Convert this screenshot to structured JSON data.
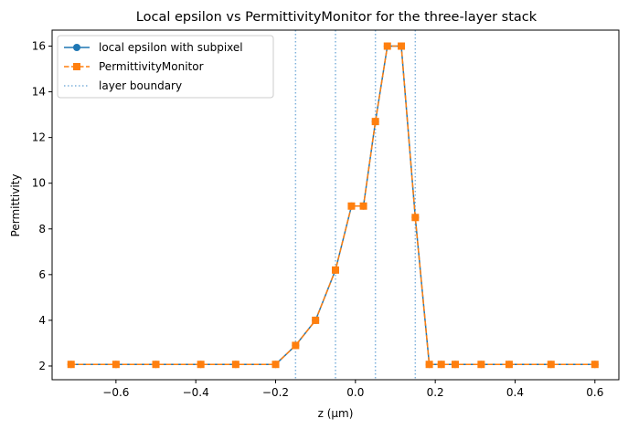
{
  "chart_data": {
    "type": "line",
    "title": "Local epsilon vs PermittivityMonitor for the three-layer stack",
    "xlabel": "z (µm)",
    "ylabel": "Permittivity",
    "xlim": [
      -0.76,
      0.66
    ],
    "ylim": [
      1.4,
      16.7
    ],
    "xticks": [
      -0.6,
      -0.4,
      -0.2,
      0.0,
      0.2,
      0.4,
      0.6
    ],
    "xtick_labels": [
      "−0.6",
      "−0.4",
      "−0.2",
      "0.0",
      "0.2",
      "0.4",
      "0.6"
    ],
    "yticks": [
      2,
      4,
      6,
      8,
      10,
      12,
      14,
      16
    ],
    "ytick_labels": [
      "2",
      "4",
      "6",
      "8",
      "10",
      "12",
      "14",
      "16"
    ],
    "grid": false,
    "legend_position": "top-left",
    "series": [
      {
        "name": "local epsilon with subpixel",
        "color": "#1f77b4",
        "style": "solid",
        "marker": "circle",
        "x": [
          -0.7125,
          -0.6,
          -0.5,
          -0.3875,
          -0.3,
          -0.2,
          -0.15,
          -0.1,
          -0.05,
          -0.01,
          0.02,
          0.05,
          0.08,
          0.115,
          0.15,
          0.185,
          0.215,
          0.25,
          0.315,
          0.385,
          0.49,
          0.6
        ],
        "y": [
          2.07,
          2.07,
          2.07,
          2.07,
          2.07,
          2.07,
          2.9,
          4.0,
          6.2,
          9.0,
          9.0,
          12.7,
          16.0,
          16.0,
          8.5,
          2.07,
          2.07,
          2.07,
          2.07,
          2.07,
          2.07,
          2.07
        ]
      },
      {
        "name": "PermittivityMonitor",
        "color": "#ff7f0e",
        "style": "dashed",
        "marker": "square",
        "x": [
          -0.7125,
          -0.6,
          -0.5,
          -0.3875,
          -0.3,
          -0.2,
          -0.15,
          -0.1,
          -0.05,
          -0.01,
          0.02,
          0.05,
          0.08,
          0.115,
          0.15,
          0.185,
          0.215,
          0.25,
          0.315,
          0.385,
          0.49,
          0.6
        ],
        "y": [
          2.07,
          2.07,
          2.07,
          2.07,
          2.07,
          2.07,
          2.9,
          4.0,
          6.2,
          9.0,
          9.0,
          12.7,
          16.0,
          16.0,
          8.5,
          2.07,
          2.07,
          2.07,
          2.07,
          2.07,
          2.07,
          2.07
        ]
      }
    ],
    "boundaries": {
      "name": "layer boundary",
      "color": "#7fb2dc",
      "style": "dotted",
      "x": [
        -0.15,
        -0.05,
        0.05,
        0.15
      ]
    }
  }
}
